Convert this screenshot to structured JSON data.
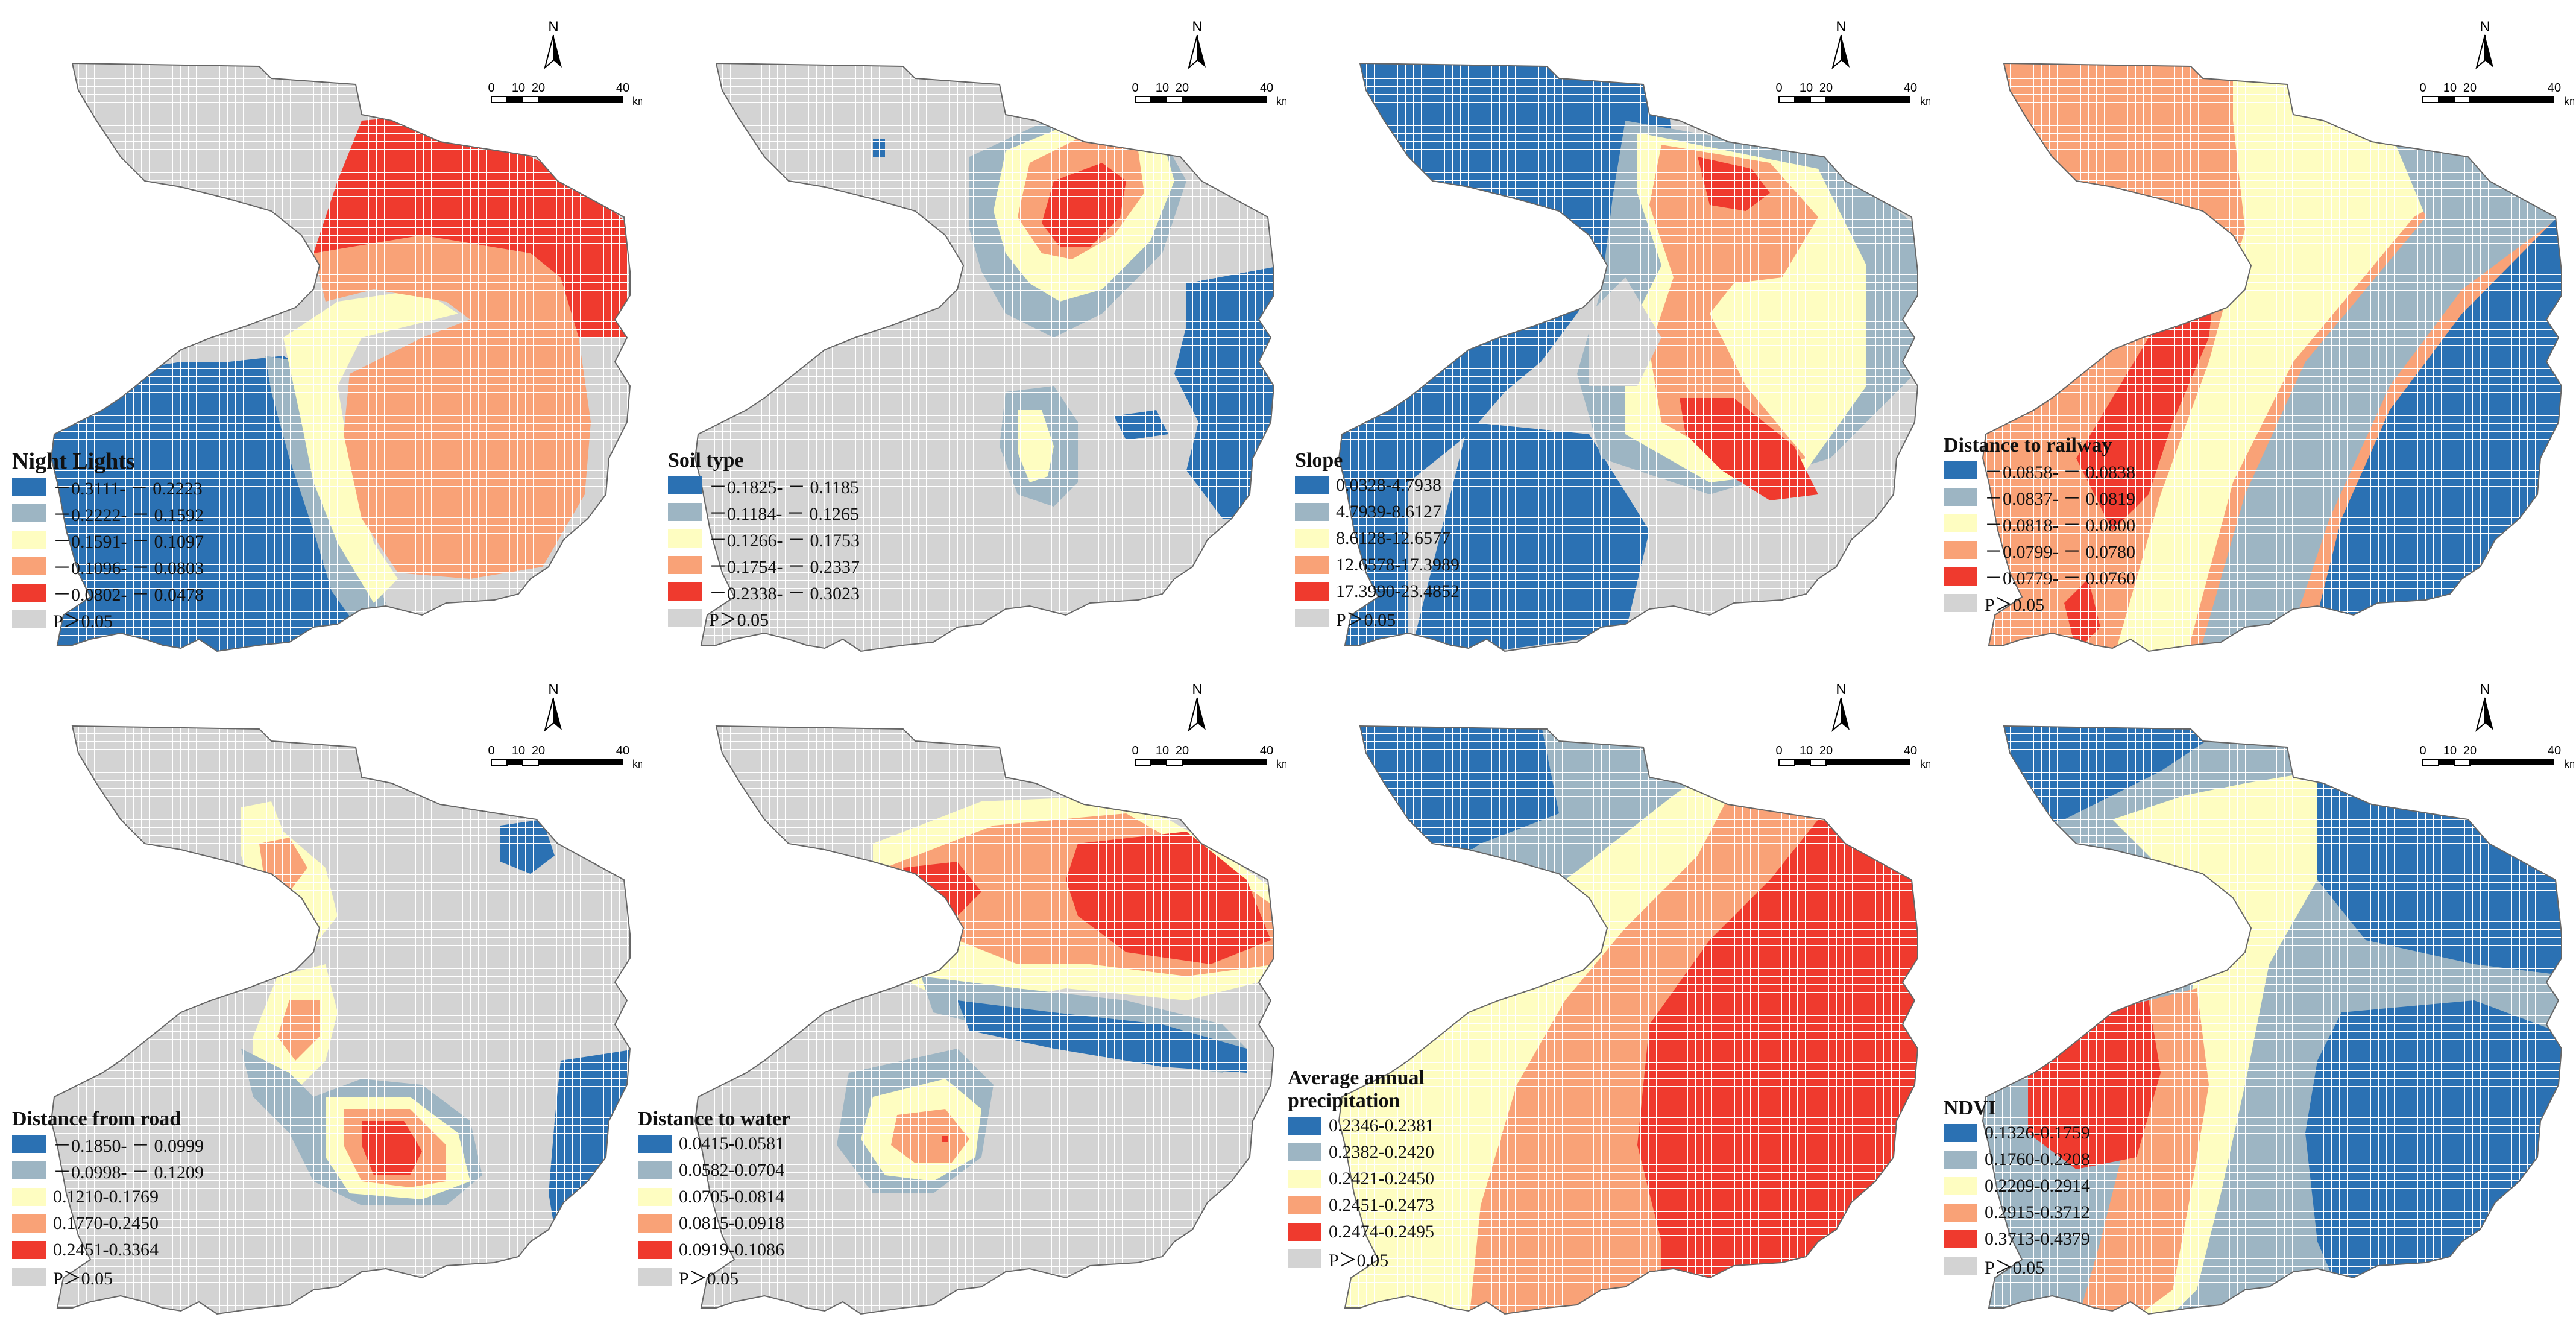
{
  "colors": {
    "class1": "#2b71b3",
    "class2": "#9db5c3",
    "class3": "#fefdc1",
    "class4": "#f9a277",
    "class5": "#ef3a2e",
    "insignificant": "#d3d3d3",
    "grid": "#ffffff"
  },
  "scale": {
    "labels": [
      "0",
      "10",
      "20",
      "40"
    ],
    "unit": "km",
    "north": "N"
  },
  "panels": [
    {
      "title": "Night Lights",
      "classes": [
        "－0.3111- － 0.2223",
        "－0.2222- － 0.1592",
        "－0.1591- － 0.1097",
        "－0.1096- － 0.0803",
        "－0.0802- － 0.0478",
        "P＞0.05"
      ]
    },
    {
      "title": "Soil type",
      "classes": [
        "－0.1825- － 0.1185",
        "－0.1184- － 0.1265",
        "－0.1266- － 0.1753",
        "－0.1754- － 0.2337",
        "－0.2338- － 0.3023",
        "P＞0.05"
      ]
    },
    {
      "title": "Slope",
      "classes": [
        "0.0328-4.7938",
        "4.7939-8.6127",
        "8.6128-12.6577",
        "12.6578-17.3989",
        "17.3990-23.4852",
        "P＞0.05"
      ]
    },
    {
      "title": "Distance to railway",
      "classes": [
        "－0.0858- － 0.0838",
        "－0.0837- － 0.0819",
        "－0.0818- － 0.0800",
        "－0.0799- － 0.0780",
        "－0.0779- － 0.0760",
        "P＞0.05"
      ]
    },
    {
      "title": "Distance from road",
      "classes": [
        "－0.1850- － 0.0999",
        "－0.0998- － 0.1209",
        "0.1210-0.1769",
        "0.1770-0.2450",
        "0.2451-0.3364",
        "P＞0.05"
      ]
    },
    {
      "title": "Distance to water",
      "classes": [
        "0.0415-0.0581",
        "0.0582-0.0704",
        "0.0705-0.0814",
        "0.0815-0.0918",
        "0.0919-0.1086",
        "P＞0.05"
      ]
    },
    {
      "title": "Average annual precipitation",
      "title_line1": "Average annual",
      "title_line2": "precipitation",
      "classes": [
        "0.2346-0.2381",
        "0.2382-0.2420",
        "0.2421-0.2450",
        "0.2451-0.2473",
        "0.2474-0.2495",
        "P＞0.05"
      ]
    },
    {
      "title": "NDVI",
      "classes": [
        "0.1326-0.1759",
        "0.1760-0.2208",
        "0.2209-0.2914",
        "0.2915-0.3712",
        "0.3713-0.4379",
        "P＞0.05"
      ]
    }
  ]
}
